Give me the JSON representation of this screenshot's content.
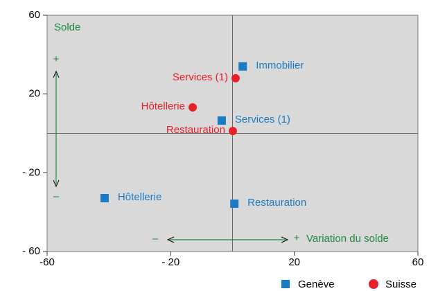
{
  "chart_data": {
    "type": "scatter",
    "y_label": "Solde",
    "x_label": "Variation du solde",
    "annotations": [
      "+",
      "–",
      "–",
      "+"
    ],
    "xlim": [
      -60,
      60
    ],
    "ylim": [
      -60,
      60
    ],
    "xticks": [
      -60,
      {
        "value": -20,
        "label": "- 20"
      },
      20,
      60
    ],
    "yticks": [
      60,
      20,
      {
        "value": -20,
        "label": "- 20"
      },
      {
        "value": -60,
        "label": "- 60"
      }
    ],
    "series": [
      {
        "name": "Genève",
        "color": "#1a7bc4",
        "marker": "square",
        "labels": [
          "Immobilier",
          "Services (1)",
          "Hôtellerie",
          "Restauration"
        ],
        "x": [
          3.3,
          -3.5,
          -41.4,
          0.6
        ],
        "y": [
          34,
          6.5,
          -32.9,
          -35.7
        ]
      },
      {
        "name": "Suisse",
        "color": "#e8202a",
        "marker": "circle",
        "labels": [
          "Services (1)",
          "Hôtellerie",
          "Restauration"
        ],
        "x": [
          1,
          -12.9,
          0.1
        ],
        "y": [
          28,
          13.2,
          1.2
        ]
      }
    ]
  }
}
